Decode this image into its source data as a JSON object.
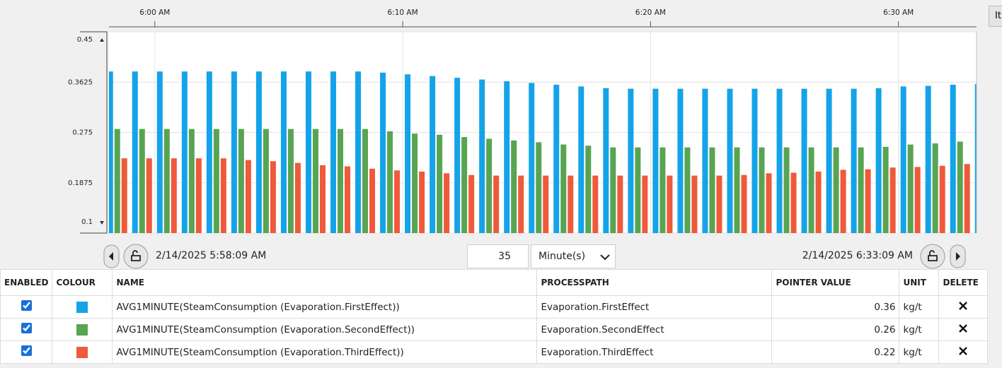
{
  "chart_data": {
    "type": "bar",
    "xlim": [
      "5:58:09 AM",
      "6:33:09 AM"
    ],
    "xticks": [
      "6:00 AM",
      "6:10 AM",
      "6:20 AM",
      "6:30 AM"
    ],
    "ylim": [
      0.1,
      0.45
    ],
    "yticks": [
      0.1,
      0.1875,
      0.275,
      0.3625,
      0.45
    ],
    "grid": true,
    "x": [
      "5:58 AM",
      "5:59 AM",
      "6:00 AM",
      "6:01 AM",
      "6:02 AM",
      "6:03 AM",
      "6:04 AM",
      "6:05 AM",
      "6:06 AM",
      "6:07 AM",
      "6:08 AM",
      "6:09 AM",
      "6:10 AM",
      "6:11 AM",
      "6:12 AM",
      "6:13 AM",
      "6:14 AM",
      "6:15 AM",
      "6:16 AM",
      "6:17 AM",
      "6:18 AM",
      "6:19 AM",
      "6:20 AM",
      "6:21 AM",
      "6:22 AM",
      "6:23 AM",
      "6:24 AM",
      "6:25 AM",
      "6:26 AM",
      "6:27 AM",
      "6:28 AM",
      "6:29 AM",
      "6:30 AM",
      "6:31 AM",
      "6:32 AM",
      "6:33 AM"
    ],
    "series": [
      {
        "name": "AVG1MINUTE(SteamConsumption (Evaporation.FirstEffect))",
        "color": "#14a3e9",
        "values": [
          0.381,
          0.381,
          0.381,
          0.381,
          0.381,
          0.381,
          0.381,
          0.381,
          0.381,
          0.381,
          0.381,
          0.379,
          0.376,
          0.373,
          0.37,
          0.367,
          0.364,
          0.361,
          0.358,
          0.355,
          0.352,
          0.351,
          0.351,
          0.351,
          0.351,
          0.351,
          0.351,
          0.351,
          0.351,
          0.351,
          0.351,
          0.352,
          0.355,
          0.356,
          0.358,
          0.359
        ]
      },
      {
        "name": "AVG1MINUTE(SteamConsumption (Evaporation.SecondEffect))",
        "color": "#58a452",
        "values": [
          0.281,
          0.281,
          0.281,
          0.281,
          0.281,
          0.281,
          0.281,
          0.281,
          0.281,
          0.281,
          0.281,
          0.277,
          0.273,
          0.271,
          0.267,
          0.264,
          0.261,
          0.258,
          0.254,
          0.252,
          0.249,
          0.249,
          0.249,
          0.249,
          0.249,
          0.249,
          0.249,
          0.249,
          0.249,
          0.249,
          0.249,
          0.25,
          0.254,
          0.256,
          0.259,
          0.26
        ]
      },
      {
        "name": "AVG1MINUTE(SteamConsumption (Evaporation.ThirdEffect))",
        "color": "#ee5a3b",
        "values": [
          0.23,
          0.23,
          0.23,
          0.23,
          0.23,
          0.227,
          0.225,
          0.222,
          0.218,
          0.216,
          0.212,
          0.209,
          0.207,
          0.204,
          0.201,
          0.2,
          0.2,
          0.2,
          0.2,
          0.2,
          0.2,
          0.2,
          0.2,
          0.2,
          0.2,
          0.201,
          0.204,
          0.205,
          0.207,
          0.21,
          0.211,
          0.214,
          0.215,
          0.217,
          0.22,
          0.222
        ]
      }
    ]
  },
  "controls": {
    "start": "2/14/2025 5:58:09 AM",
    "end": "2/14/2025 6:33:09 AM",
    "duration": 35,
    "duration_unit": "Minute(s)"
  },
  "tab_button": "It",
  "table": {
    "headers": [
      "ENABLED",
      "COLOUR",
      "NAME",
      "PROCESSPATH",
      "POINTER VALUE",
      "UNIT",
      "DELETE"
    ],
    "rows": [
      {
        "enabled": true,
        "path": "Evaporation.FirstEffect",
        "pointer_value": 0.36,
        "unit": "kg/t"
      },
      {
        "enabled": true,
        "path": "Evaporation.SecondEffect",
        "pointer_value": 0.26,
        "unit": "kg/t"
      },
      {
        "enabled": true,
        "path": "Evaporation.ThirdEffect",
        "pointer_value": 0.22,
        "unit": "kg/t"
      }
    ]
  }
}
